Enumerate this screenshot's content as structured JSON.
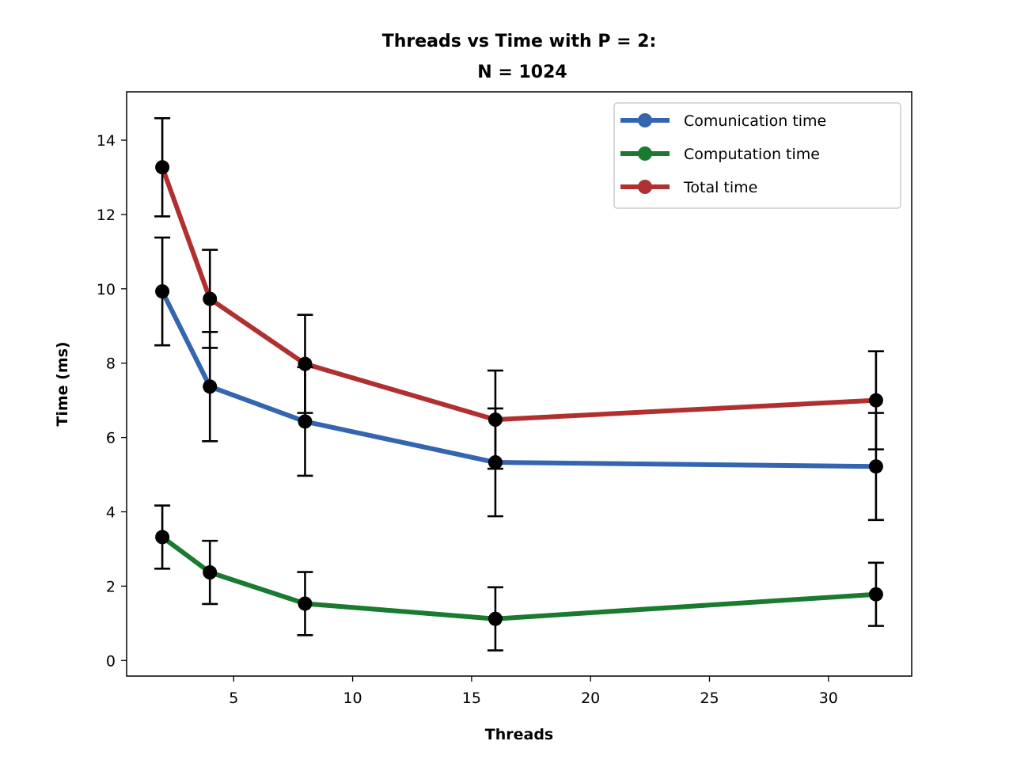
{
  "chart_data": {
    "type": "line",
    "title": "Threads vs Time with P = 2:",
    "subtitle": "N = 1024",
    "xlabel": "Threads",
    "ylabel": "Time (ms)",
    "x": [
      2,
      4,
      8,
      16,
      32
    ],
    "xlim": [
      0.5,
      33.5
    ],
    "ylim": [
      -0.42,
      15.3
    ],
    "xticks": [
      5,
      10,
      15,
      20,
      25,
      30
    ],
    "yticks": [
      0,
      2,
      4,
      6,
      8,
      10,
      12,
      14
    ],
    "grid": false,
    "legend_position": "top-right",
    "series": [
      {
        "name": "Comunication time",
        "color": "#3465b0",
        "values": [
          9.93,
          7.37,
          6.43,
          5.33,
          5.22
        ],
        "errors": [
          1.45,
          1.47,
          1.46,
          1.45,
          1.44
        ]
      },
      {
        "name": "Computation time",
        "color": "#1a7a30",
        "values": [
          3.32,
          2.37,
          1.53,
          1.12,
          1.78
        ],
        "errors": [
          0.85,
          0.85,
          0.85,
          0.85,
          0.85
        ]
      },
      {
        "name": "Total time",
        "color": "#b03030",
        "values": [
          13.27,
          9.73,
          7.98,
          6.48,
          7.0
        ],
        "errors": [
          1.32,
          1.32,
          1.32,
          1.32,
          1.32
        ]
      }
    ],
    "marker_color": "#000000",
    "errorbar_color": "#000000"
  }
}
